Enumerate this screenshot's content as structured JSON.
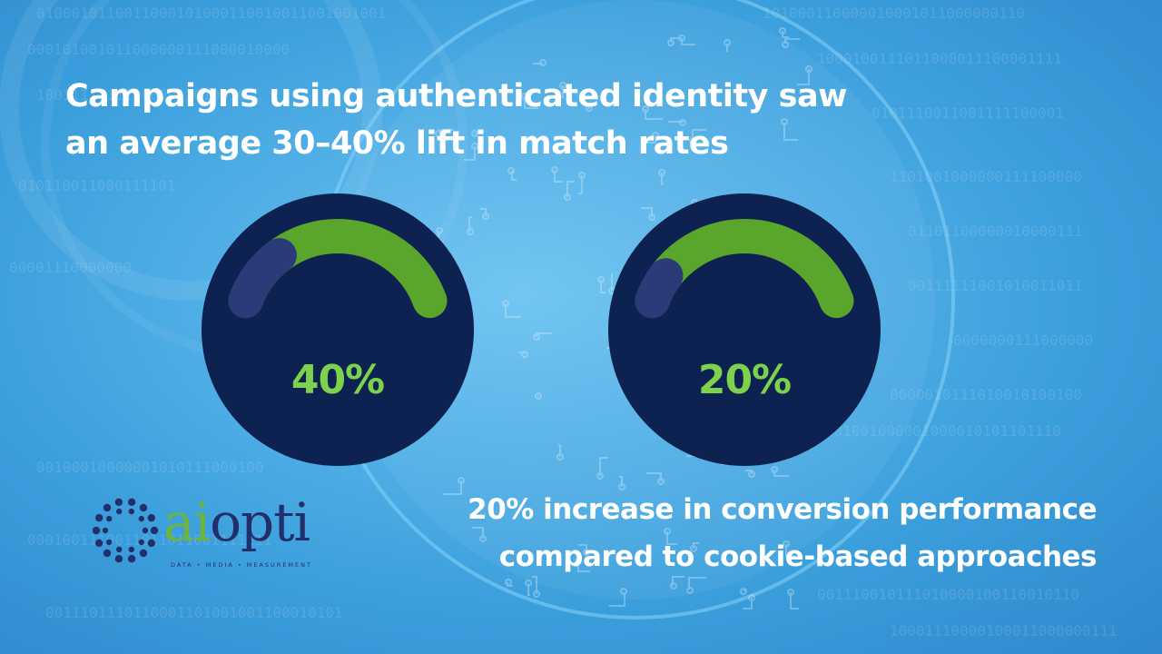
{
  "headline": {
    "line1": "Campaigns using authenticated identity saw",
    "line2": "an average 30–40% lift in match rates"
  },
  "gauges": [
    {
      "label": "40%",
      "value_fraction": 0.4
    },
    {
      "label": "20%",
      "value_fraction": 0.2
    }
  ],
  "stat": {
    "line1": "20% increase in conversion performance",
    "line2": "compared to cookie-based approaches"
  },
  "logo": {
    "word_part1": "ai",
    "word_part2": "opti",
    "tagline": "DATA • MEDIA • MEASUREMENT"
  },
  "colors": {
    "background": "#3fa0dd",
    "gauge_circle": "#0d2250",
    "gauge_fill": "#5aa62d",
    "gauge_knob": "#2b3a78",
    "value_text": "#7dd24d",
    "logo_navy": "#232f6b",
    "logo_green": "#6db33f"
  }
}
